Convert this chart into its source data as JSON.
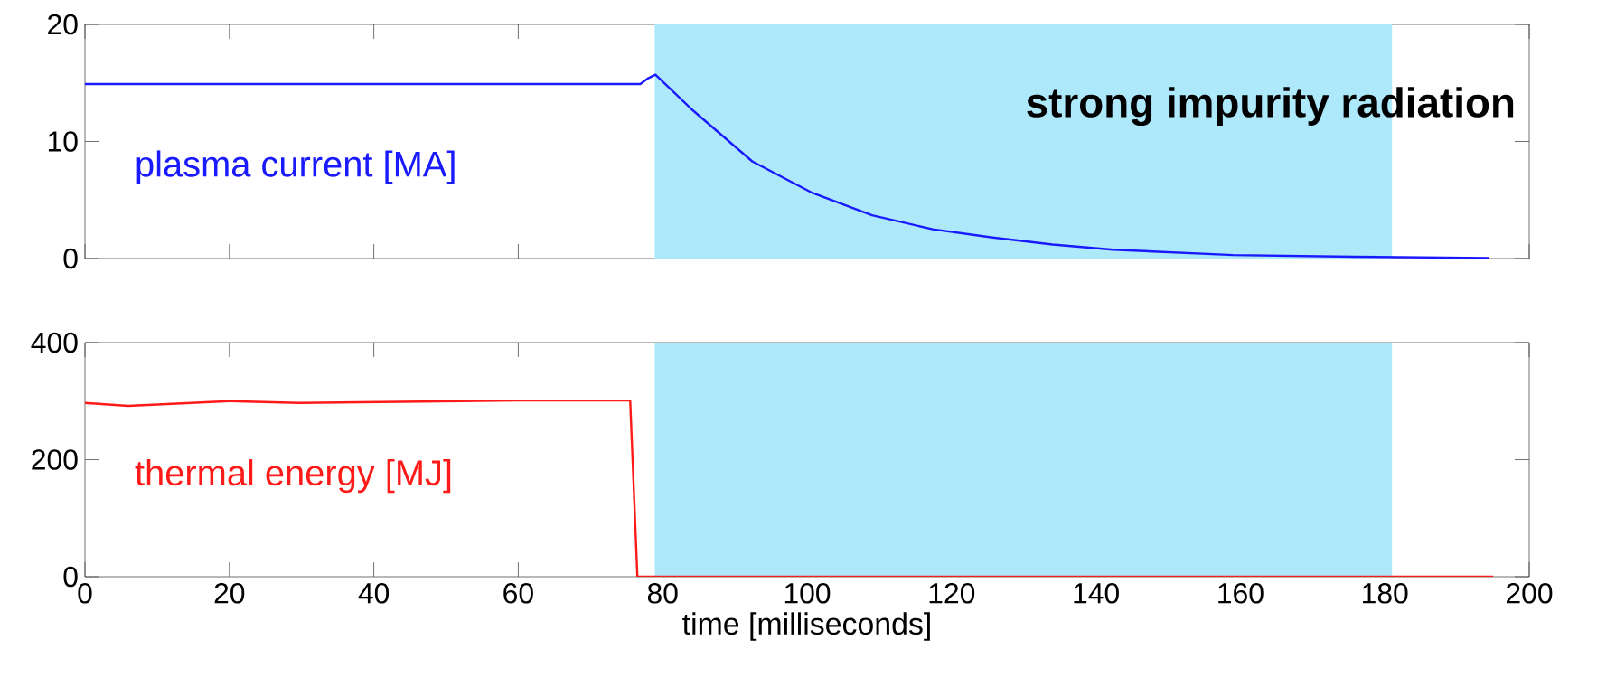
{
  "chart_data": [
    {
      "type": "line",
      "xlim": [
        0,
        200
      ],
      "ylim": [
        0,
        20
      ],
      "xticks": [
        0,
        20,
        40,
        60,
        80,
        100,
        120,
        140,
        160,
        180,
        200
      ],
      "yticks": [
        0,
        10,
        20
      ],
      "tick_labels": "y",
      "grid": false,
      "x": [
        0,
        20,
        40,
        60,
        76.9,
        78,
        79,
        84.1,
        92.4,
        100.75,
        109,
        117.4,
        125.7,
        134,
        142.4,
        159,
        175.7,
        194.5
      ],
      "series": [
        {
          "name": "plasma current [MA]",
          "color": "#1a1aff",
          "values": [
            14.9,
            14.9,
            14.9,
            14.9,
            14.9,
            15.4,
            15.7,
            12.7,
            8.3,
            5.6,
            3.7,
            2.5,
            1.8,
            1.2,
            0.75,
            0.3,
            0.15,
            0.05
          ]
        }
      ],
      "bands": [
        {
          "axis": "x",
          "from": 78.9,
          "to": 181,
          "color": "#aee8fb"
        }
      ],
      "annotations": [
        "strong impurity radiation"
      ]
    },
    {
      "type": "line",
      "xlim": [
        0,
        200
      ],
      "ylim": [
        0,
        400
      ],
      "xticks": [
        0,
        20,
        40,
        60,
        80,
        100,
        120,
        140,
        160,
        180,
        200
      ],
      "yticks": [
        0,
        200,
        400
      ],
      "grid": false,
      "xlabel": "time [milliseconds]",
      "x": [
        0,
        6,
        20,
        29.6,
        60,
        75.5,
        76.5,
        100,
        150,
        195
      ],
      "series": [
        {
          "name": "thermal energy [MJ]",
          "color": "#ff1a1a",
          "values": [
            297,
            292,
            300,
            297,
            301,
            301,
            0,
            0,
            0,
            0
          ]
        }
      ],
      "bands": [
        {
          "axis": "x",
          "from": 78.9,
          "to": 181,
          "color": "#aee8fb"
        }
      ]
    }
  ]
}
